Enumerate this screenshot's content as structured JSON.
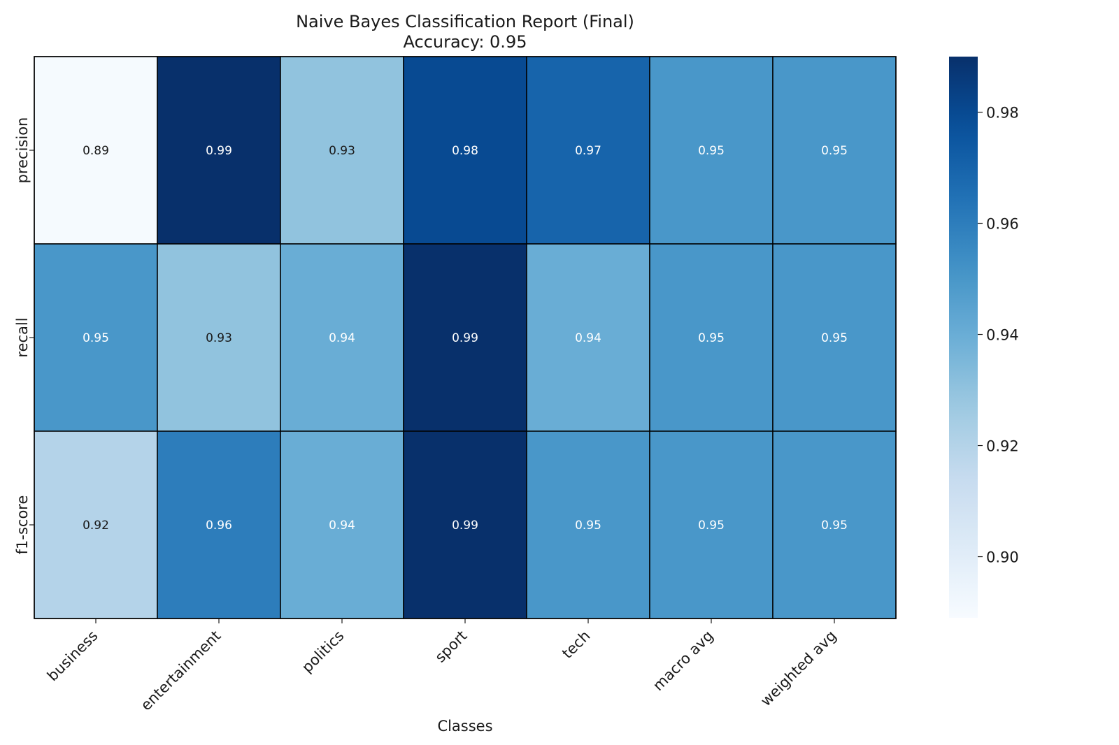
{
  "chart_data": {
    "type": "heatmap",
    "title": "Naive Bayes Classification Report (Final)",
    "subtitle": "Accuracy: 0.95",
    "xlabel": "Classes",
    "ylabel": "",
    "x_categories": [
      "business",
      "entertainment",
      "politics",
      "sport",
      "tech",
      "macro avg",
      "weighted avg"
    ],
    "y_categories": [
      "precision",
      "recall",
      "f1-score"
    ],
    "values": [
      [
        0.89,
        0.99,
        0.93,
        0.98,
        0.97,
        0.95,
        0.95
      ],
      [
        0.95,
        0.93,
        0.94,
        0.99,
        0.94,
        0.95,
        0.95
      ],
      [
        0.92,
        0.96,
        0.94,
        0.99,
        0.95,
        0.95,
        0.95
      ]
    ],
    "value_labels": [
      [
        "0.89",
        "0.99",
        "0.93",
        "0.98",
        "0.97",
        "0.95",
        "0.95"
      ],
      [
        "0.95",
        "0.93",
        "0.94",
        "0.99",
        "0.94",
        "0.95",
        "0.95"
      ],
      [
        "0.92",
        "0.96",
        "0.94",
        "0.99",
        "0.95",
        "0.95",
        "0.95"
      ]
    ],
    "colormap": "Blues",
    "colorbar": {
      "range": [
        0.889,
        0.99
      ],
      "ticks": [
        0.9,
        0.92,
        0.94,
        0.96,
        0.98
      ],
      "tick_labels": [
        "0.90",
        "0.92",
        "0.94",
        "0.96",
        "0.98"
      ]
    },
    "cell_border_color": "#000000",
    "grid": false,
    "legend": "colorbar-right"
  }
}
